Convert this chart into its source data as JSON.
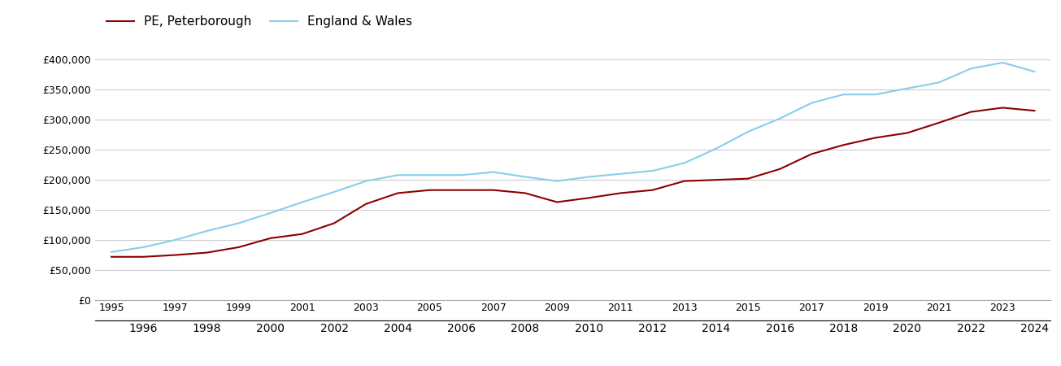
{
  "legend_labels": [
    "PE, Peterborough",
    "England & Wales"
  ],
  "line_colors": [
    "#8B0000",
    "#87CEEB"
  ],
  "peterborough": {
    "years": [
      1995,
      1996,
      1997,
      1998,
      1999,
      2000,
      2001,
      2002,
      2003,
      2004,
      2005,
      2006,
      2007,
      2008,
      2009,
      2010,
      2011,
      2012,
      2013,
      2014,
      2015,
      2016,
      2017,
      2018,
      2019,
      2020,
      2021,
      2022,
      2023,
      2024
    ],
    "values": [
      72000,
      72000,
      75000,
      79000,
      88000,
      103000,
      110000,
      128000,
      160000,
      178000,
      183000,
      183000,
      183000,
      178000,
      163000,
      170000,
      178000,
      183000,
      198000,
      200000,
      202000,
      218000,
      243000,
      258000,
      270000,
      278000,
      295000,
      313000,
      320000,
      315000
    ]
  },
  "england_wales": {
    "years": [
      1995,
      1996,
      1997,
      1998,
      1999,
      2000,
      2001,
      2002,
      2003,
      2004,
      2005,
      2006,
      2007,
      2008,
      2009,
      2010,
      2011,
      2012,
      2013,
      2014,
      2015,
      2016,
      2017,
      2018,
      2019,
      2020,
      2021,
      2022,
      2023,
      2024
    ],
    "values": [
      80000,
      88000,
      100000,
      115000,
      128000,
      145000,
      163000,
      180000,
      198000,
      208000,
      208000,
      208000,
      213000,
      205000,
      198000,
      205000,
      210000,
      215000,
      228000,
      252000,
      280000,
      302000,
      328000,
      342000,
      342000,
      352000,
      362000,
      385000,
      395000,
      380000
    ]
  },
  "ylim": [
    0,
    420000
  ],
  "yticks": [
    0,
    50000,
    100000,
    150000,
    200000,
    250000,
    300000,
    350000,
    400000
  ],
  "xlim": [
    1994.5,
    2024.5
  ],
  "background_color": "#ffffff",
  "grid_color": "#cccccc",
  "line_width": 1.5,
  "odd_years": [
    1995,
    1997,
    1999,
    2001,
    2003,
    2005,
    2007,
    2009,
    2011,
    2013,
    2015,
    2017,
    2019,
    2021,
    2023
  ],
  "even_years": [
    1996,
    1998,
    2000,
    2002,
    2004,
    2006,
    2008,
    2010,
    2012,
    2014,
    2016,
    2018,
    2020,
    2022,
    2024
  ]
}
